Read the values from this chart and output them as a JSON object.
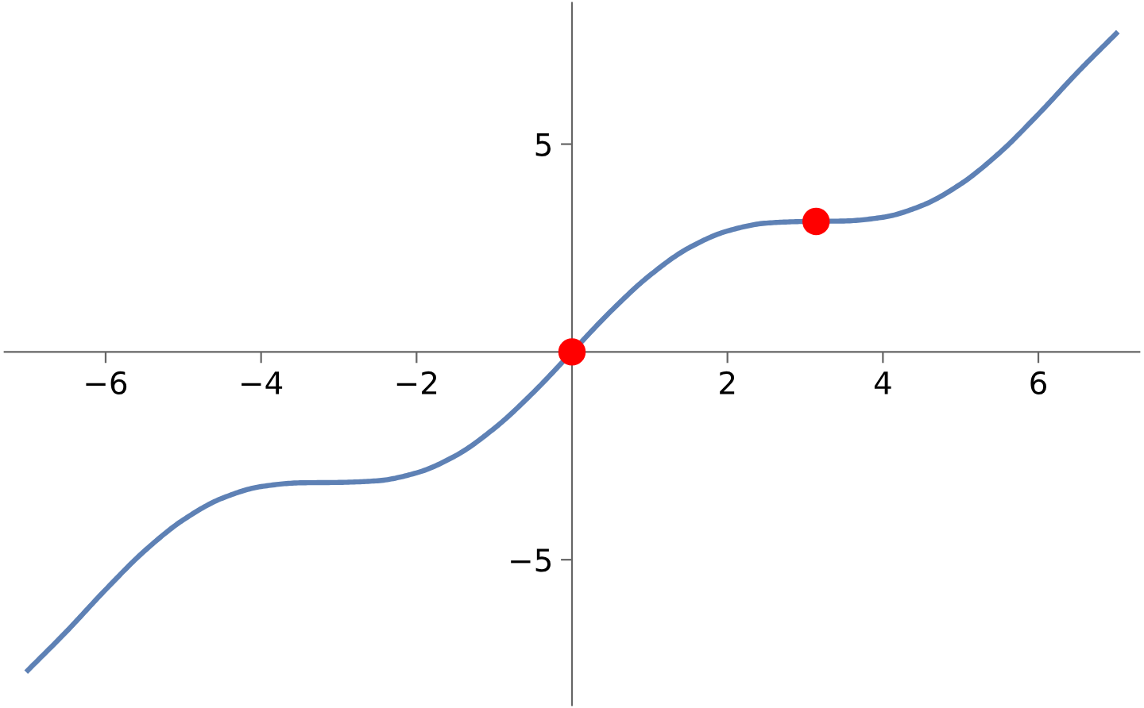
{
  "chart_data": {
    "type": "line",
    "xlim": [
      -7.3,
      7.3
    ],
    "ylim": [
      -8.5,
      8.4
    ],
    "xticks": [
      {
        "value": -6,
        "label": "−6"
      },
      {
        "value": -4,
        "label": "−4"
      },
      {
        "value": -2,
        "label": "−2"
      },
      2,
      4,
      6
    ],
    "yticks": [
      {
        "value": -5,
        "label": "−5"
      },
      5
    ],
    "grid": false,
    "legend": false,
    "series": [
      {
        "color": "#5e81b5",
        "marker": "none",
        "line_style": "solid",
        "x": [
          -7,
          -6.5,
          -6,
          -5.5,
          -5,
          -4.5,
          -4,
          -3.5,
          -3,
          -2.5,
          -2,
          -1.5,
          -1,
          -0.5,
          0,
          0.5,
          1,
          1.5,
          2,
          2.5,
          3,
          3.5,
          4,
          4.5,
          5,
          5.5,
          6,
          6.5,
          7
        ],
        "values": [
          -7.66,
          -6.72,
          -5.72,
          -4.79,
          -4.04,
          -3.52,
          -3.24,
          -3.15,
          -3.14,
          -3.1,
          -2.91,
          -2.5,
          -1.84,
          -0.98,
          0,
          0.98,
          1.84,
          2.5,
          2.91,
          3.1,
          3.14,
          3.15,
          3.24,
          3.52,
          4.04,
          4.79,
          5.72,
          6.72,
          7.66
        ]
      },
      {
        "type": "scatter",
        "color": "#ff0000",
        "marker": "circle",
        "x": [
          0,
          3.14
        ],
        "values": [
          0,
          3.14
        ]
      }
    ]
  }
}
